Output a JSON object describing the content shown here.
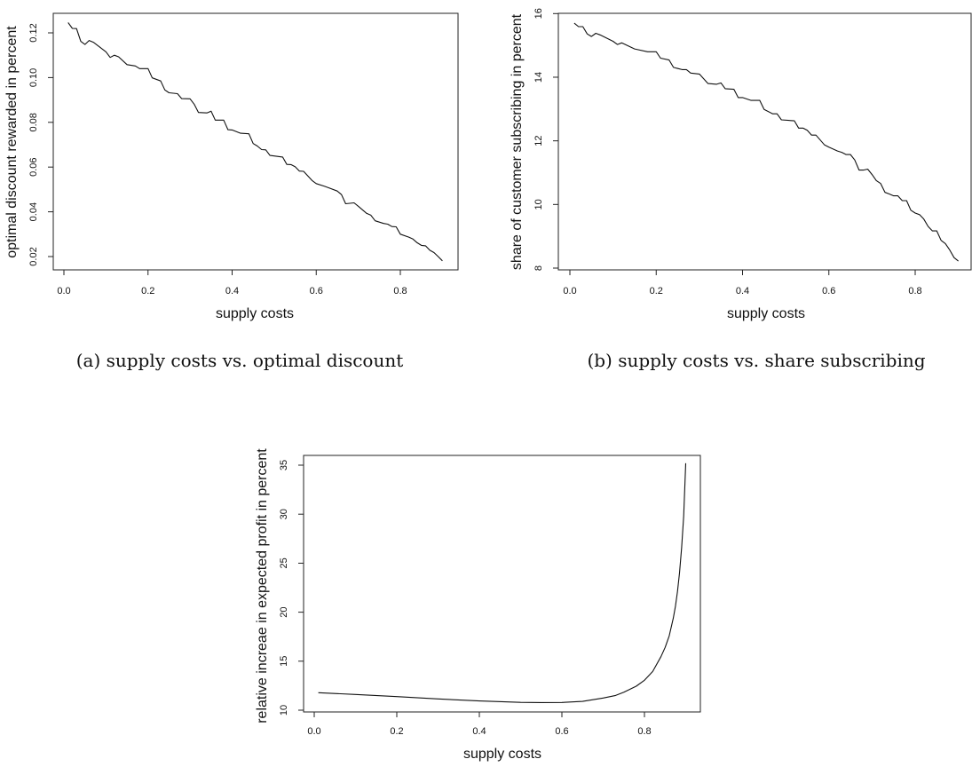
{
  "captions": [
    "(a) supply costs vs. optimal discount",
    "(b) supply costs vs. share subscribing"
  ],
  "chart_data": [
    {
      "type": "line",
      "title": "",
      "xlabel": "supply costs",
      "ylabel": "optimal discount rewarded in percent",
      "xticks": [
        "0.0",
        "0.2",
        "0.4",
        "0.6",
        "0.8"
      ],
      "yticks": [
        "0.02",
        "0.04",
        "0.06",
        "0.08",
        "0.10",
        "0.12"
      ],
      "xlim": [
        0.0,
        0.9
      ],
      "ylim": [
        0.018,
        0.125
      ],
      "x": [
        0.01,
        0.02,
        0.03,
        0.04,
        0.05,
        0.06,
        0.07,
        0.1,
        0.11,
        0.12,
        0.13,
        0.15,
        0.17,
        0.18,
        0.2,
        0.21,
        0.23,
        0.24,
        0.25,
        0.27,
        0.28,
        0.3,
        0.31,
        0.32,
        0.34,
        0.35,
        0.36,
        0.38,
        0.39,
        0.4,
        0.42,
        0.44,
        0.45,
        0.46,
        0.47,
        0.48,
        0.49,
        0.52,
        0.53,
        0.54,
        0.55,
        0.56,
        0.57,
        0.59,
        0.6,
        0.62,
        0.63,
        0.65,
        0.66,
        0.67,
        0.69,
        0.7,
        0.72,
        0.73,
        0.74,
        0.76,
        0.77,
        0.78,
        0.79,
        0.8,
        0.82,
        0.83,
        0.84,
        0.85,
        0.86,
        0.87,
        0.88,
        0.89,
        0.9
      ],
      "y": [
        0.1246,
        0.122,
        0.1219,
        0.1162,
        0.1148,
        0.1166,
        0.1158,
        0.1115,
        0.109,
        0.11,
        0.1093,
        0.1058,
        0.1052,
        0.104,
        0.104,
        0.0999,
        0.0985,
        0.0945,
        0.0932,
        0.0928,
        0.0906,
        0.0905,
        0.088,
        0.0844,
        0.0842,
        0.085,
        0.081,
        0.081,
        0.0767,
        0.0766,
        0.0751,
        0.0749,
        0.0705,
        0.0694,
        0.0678,
        0.0677,
        0.0652,
        0.0645,
        0.0612,
        0.0611,
        0.0601,
        0.0582,
        0.0581,
        0.054,
        0.0526,
        0.0514,
        0.0507,
        0.0493,
        0.0477,
        0.0436,
        0.044,
        0.0425,
        0.0393,
        0.0385,
        0.036,
        0.0348,
        0.0345,
        0.0334,
        0.0333,
        0.03,
        0.0287,
        0.0278,
        0.0262,
        0.025,
        0.0248,
        0.0228,
        0.0218,
        0.02,
        0.0181
      ]
    },
    {
      "type": "line",
      "title": "",
      "xlabel": "supply costs",
      "ylabel": "share of customer subscribing in percent",
      "xticks": [
        "0.0",
        "0.2",
        "0.4",
        "0.6",
        "0.8"
      ],
      "yticks": [
        "8",
        "10",
        "12",
        "14",
        "16"
      ],
      "xlim": [
        0.0,
        0.9
      ],
      "ylim": [
        8.2,
        15.7
      ],
      "x": [
        0.01,
        0.02,
        0.03,
        0.04,
        0.05,
        0.06,
        0.07,
        0.1,
        0.11,
        0.12,
        0.15,
        0.18,
        0.2,
        0.21,
        0.23,
        0.24,
        0.26,
        0.27,
        0.28,
        0.3,
        0.32,
        0.34,
        0.35,
        0.36,
        0.38,
        0.39,
        0.4,
        0.42,
        0.44,
        0.45,
        0.47,
        0.48,
        0.49,
        0.52,
        0.53,
        0.54,
        0.55,
        0.56,
        0.57,
        0.59,
        0.6,
        0.62,
        0.63,
        0.64,
        0.65,
        0.66,
        0.67,
        0.68,
        0.69,
        0.7,
        0.71,
        0.72,
        0.73,
        0.74,
        0.75,
        0.76,
        0.77,
        0.78,
        0.79,
        0.8,
        0.81,
        0.82,
        0.83,
        0.84,
        0.85,
        0.86,
        0.87,
        0.88,
        0.89,
        0.9
      ],
      "y": [
        15.7,
        15.59,
        15.59,
        15.36,
        15.28,
        15.38,
        15.33,
        15.13,
        15.03,
        15.08,
        14.89,
        14.8,
        14.8,
        14.6,
        14.54,
        14.31,
        14.24,
        14.24,
        14.13,
        14.1,
        13.8,
        13.78,
        13.82,
        13.64,
        13.62,
        13.36,
        13.36,
        13.27,
        13.27,
        12.99,
        12.85,
        12.85,
        12.66,
        12.63,
        12.4,
        12.4,
        12.33,
        12.18,
        12.18,
        11.87,
        11.8,
        11.68,
        11.64,
        11.57,
        11.57,
        11.4,
        11.08,
        11.08,
        11.11,
        10.94,
        10.75,
        10.66,
        10.38,
        10.33,
        10.27,
        10.27,
        10.12,
        10.12,
        9.82,
        9.73,
        9.68,
        9.54,
        9.31,
        9.17,
        9.17,
        8.87,
        8.77,
        8.57,
        8.33,
        8.22
      ]
    },
    {
      "type": "line",
      "title": "",
      "xlabel": "supply costs",
      "ylabel": "relative increae in expected profit in percent",
      "xticks": [
        "0.0",
        "0.2",
        "0.4",
        "0.6",
        "0.8"
      ],
      "yticks": [
        "10",
        "15",
        "20",
        "25",
        "30",
        "35"
      ],
      "xlim": [
        0.0,
        0.9
      ],
      "ylim": [
        10.78,
        35.2
      ],
      "x": [
        0.01,
        0.1,
        0.2,
        0.3,
        0.4,
        0.5,
        0.55,
        0.6,
        0.65,
        0.7,
        0.73,
        0.75,
        0.78,
        0.8,
        0.82,
        0.84,
        0.85,
        0.86,
        0.87,
        0.875,
        0.88,
        0.885,
        0.89,
        0.895,
        0.9
      ],
      "y": [
        11.78,
        11.6,
        11.39,
        11.15,
        10.94,
        10.8,
        10.78,
        10.79,
        10.9,
        11.24,
        11.5,
        11.84,
        12.45,
        13.05,
        13.95,
        15.46,
        16.4,
        17.58,
        19.39,
        20.6,
        22.1,
        24.0,
        26.6,
        29.8,
        35.2
      ]
    }
  ]
}
